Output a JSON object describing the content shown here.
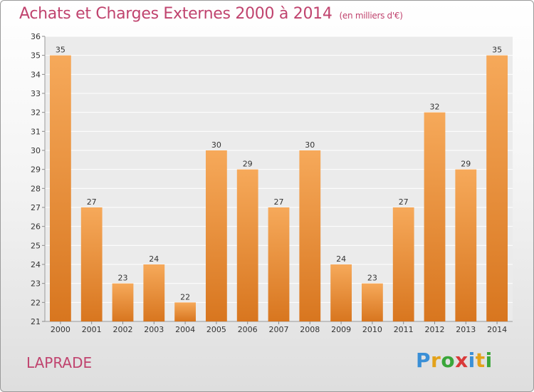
{
  "title": {
    "main": "Achats et Charges Externes 2000 à 2014",
    "unit": "(en milliers d'€)",
    "color": "#c0436e"
  },
  "commune": "LAPRADE",
  "logo": {
    "letters": [
      "P",
      "r",
      "o",
      "x",
      "i",
      "t",
      "i"
    ],
    "colors": [
      "#3a8fd6",
      "#e3a21a",
      "#3aa63a",
      "#d93a3a",
      "#3a8fd6",
      "#e3a21a",
      "#3aa63a"
    ]
  },
  "chart_data": {
    "type": "bar",
    "categories": [
      "2000",
      "2001",
      "2002",
      "2003",
      "2004",
      "2005",
      "2006",
      "2007",
      "2008",
      "2009",
      "2010",
      "2011",
      "2012",
      "2013",
      "2014"
    ],
    "values": [
      35,
      27,
      23,
      24,
      22,
      30,
      29,
      27,
      30,
      24,
      23,
      27,
      32,
      29,
      35
    ],
    "ylim": [
      21,
      36
    ],
    "yticks": [
      21,
      22,
      23,
      24,
      25,
      26,
      27,
      28,
      29,
      30,
      31,
      32,
      33,
      34,
      35,
      36
    ],
    "grid": true,
    "bar_color_top": "#f6a95a",
    "bar_color_bottom": "#d8761f"
  }
}
